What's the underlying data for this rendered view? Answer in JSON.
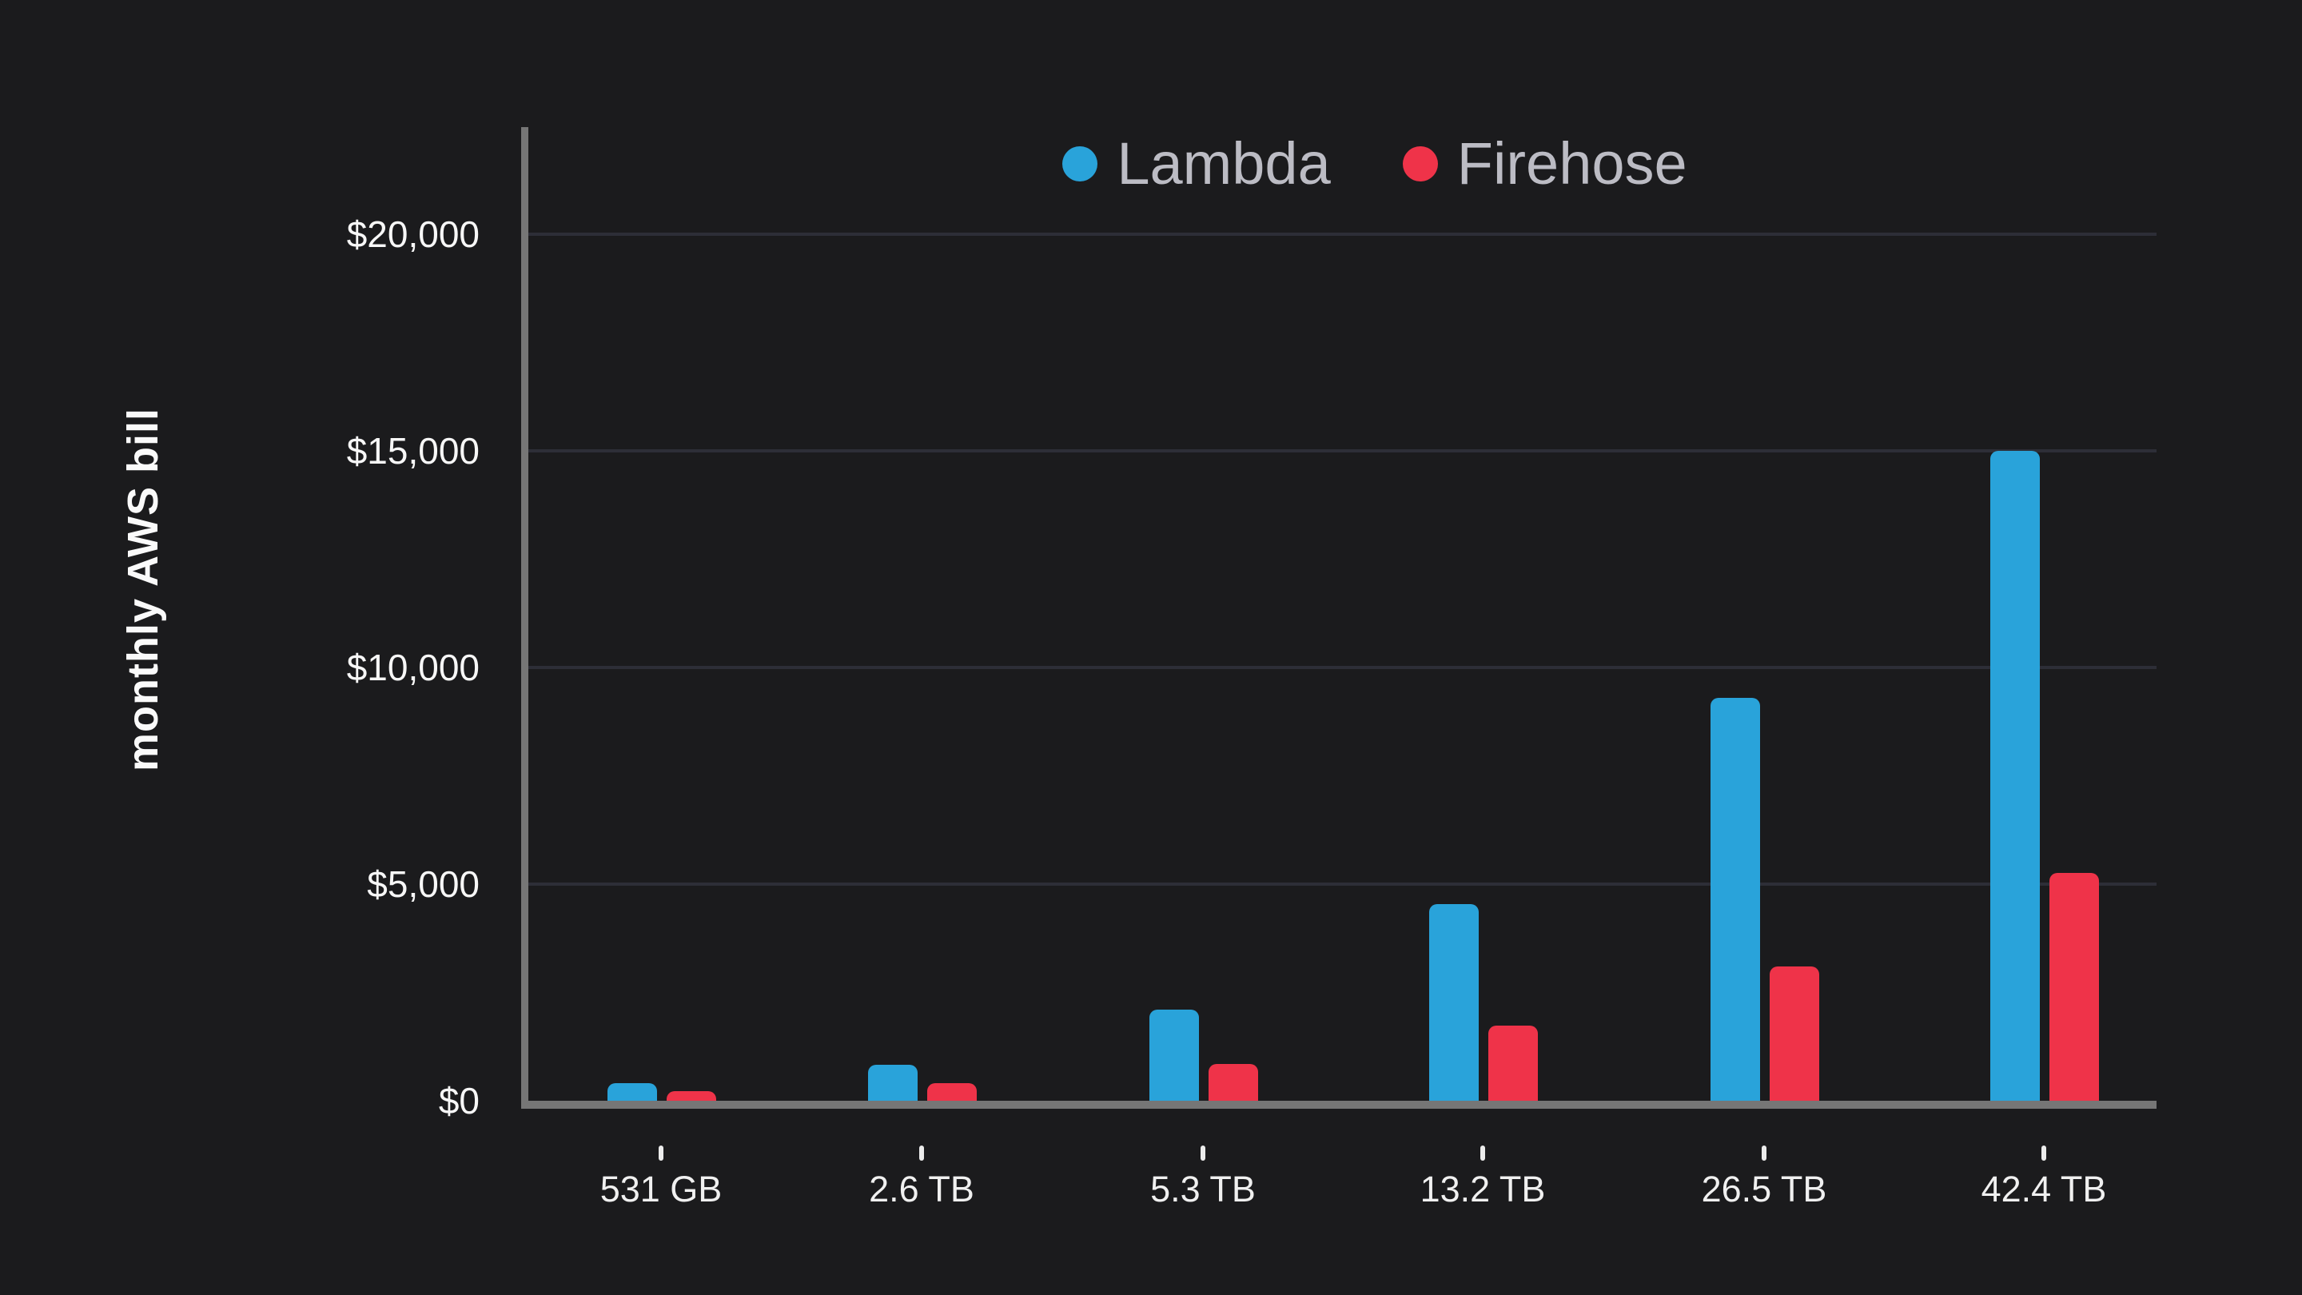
{
  "chart_data": {
    "type": "bar",
    "title": "",
    "ylabel": "monthly AWS bill",
    "xlabel": "",
    "categories": [
      "531 GB",
      "2.6 TB",
      "5.3 TB",
      "13.2 TB",
      "26.5 TB",
      "42.4 TB"
    ],
    "series": [
      {
        "name": "Lambda",
        "color": "#29A3DA",
        "values": [
          400,
          830,
          2100,
          4540,
          9300,
          15000
        ]
      },
      {
        "name": "Firehose",
        "color": "#EF3349",
        "values": [
          220,
          410,
          850,
          1730,
          3100,
          5250
        ]
      }
    ],
    "ylim": [
      0,
      20000
    ],
    "ytick_step": 5000,
    "ytick_labels": [
      "$0",
      "$5,000",
      "$10,000",
      "$15,000",
      "$20,000"
    ],
    "grid": true,
    "legend_position": "top-center"
  },
  "colors": {
    "background": "#1B1B1D",
    "axis_line": "#767676",
    "gridline": "#2D2E37",
    "lambda_blue": "#29A3DA",
    "firehose_red": "#EF3349",
    "legend_text": "#BCBCC4",
    "y_tick_label": "#F7F7F7",
    "x_tick_label": "#F0F0F0",
    "y_axis_title": "#FAFAFA"
  }
}
